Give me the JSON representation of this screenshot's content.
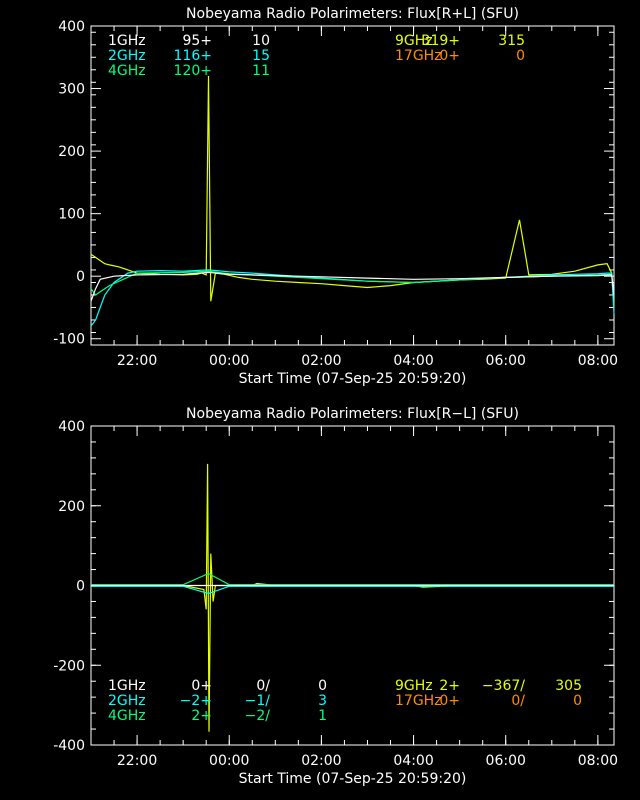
{
  "colors": {
    "1GHz": "#ffffff",
    "2GHz": "#00ffff",
    "4GHz": "#00ff7f",
    "9GHz": "#e6ff00",
    "17GHz": "#ff8c00",
    "background": "#000000",
    "axes": "#ffffff"
  },
  "chart_data": [
    {
      "type": "line",
      "title": "Nobeyama Radio Polarimeters: Flux[R+L] (SFU)",
      "xlabel": "Start Time (07-Sep-25 20:59:20)",
      "ylabel": "",
      "x_unit": "hours since start",
      "xlim": [
        0,
        11.35
      ],
      "ylim": [
        -110,
        400
      ],
      "x_ticks": [
        {
          "label": "22:00",
          "x": 1.0
        },
        {
          "label": "00:00",
          "x": 3.0
        },
        {
          "label": "02:00",
          "x": 5.0
        },
        {
          "label": "04:00",
          "x": 7.0
        },
        {
          "label": "06:00",
          "x": 9.0
        },
        {
          "label": "08:00",
          "x": 11.0
        }
      ],
      "y_ticks": [
        -100,
        0,
        100,
        200,
        300,
        400
      ],
      "legend": [
        [
          {
            "freq": "1GHz",
            "a": "95+",
            "b": "10"
          },
          {
            "freq": "9GHz",
            "a": "319+",
            "b": "315"
          }
        ],
        [
          {
            "freq": "2GHz",
            "a": "116+",
            "b": "15"
          },
          {
            "freq": "17GHz",
            "a": "0+",
            "b": "0"
          }
        ],
        [
          {
            "freq": "4GHz",
            "a": "120+",
            "b": "11"
          }
        ]
      ],
      "series": [
        {
          "name": "9GHz",
          "x": [
            0.0,
            0.1,
            0.2,
            0.3,
            0.4,
            0.6,
            0.8,
            1.0,
            1.5,
            2.0,
            2.3,
            2.4,
            2.5,
            2.55,
            2.6,
            2.7,
            2.9,
            3.2,
            3.5,
            4.0,
            4.5,
            5.0,
            5.5,
            6.0,
            6.5,
            7.0,
            7.5,
            8.0,
            8.5,
            9.0,
            9.3,
            9.5,
            10.0,
            10.5,
            11.0,
            11.2,
            11.3,
            11.35
          ],
          "y": [
            35,
            30,
            25,
            20,
            18,
            15,
            10,
            5,
            3,
            2,
            3,
            5,
            2,
            320,
            -40,
            5,
            3,
            -2,
            -5,
            -8,
            -10,
            -12,
            -15,
            -18,
            -15,
            -10,
            -8,
            -6,
            -5,
            -3,
            90,
            2,
            3,
            8,
            18,
            20,
            5,
            -50
          ]
        },
        {
          "name": "2GHz",
          "x": [
            0.0,
            0.1,
            0.2,
            0.3,
            0.5,
            0.8,
            1.0,
            1.5,
            2.0,
            2.55,
            3.0,
            3.5,
            4.0,
            5.0,
            6.0,
            7.0,
            8.0,
            9.0,
            9.5,
            10.0,
            10.5,
            11.0,
            11.2,
            11.3,
            11.35
          ],
          "y": [
            -80,
            -70,
            -50,
            -30,
            -10,
            5,
            8,
            9,
            8,
            10,
            7,
            5,
            2,
            -3,
            -8,
            -10,
            -6,
            -2,
            0,
            2,
            3,
            4,
            5,
            5,
            -60
          ]
        },
        {
          "name": "4GHz",
          "x": [
            0.0,
            0.1,
            0.2,
            0.4,
            0.7,
            1.0,
            2.0,
            2.55,
            3.0,
            4.0,
            5.0,
            6.0,
            7.0,
            8.0,
            9.0,
            10.0,
            11.0,
            11.3
          ],
          "y": [
            -20,
            -30,
            -25,
            -15,
            -5,
            5,
            6,
            8,
            4,
            0,
            -4,
            -8,
            -10,
            -6,
            -2,
            0,
            2,
            3
          ]
        },
        {
          "name": "1GHz",
          "x": [
            0.0,
            0.1,
            0.2,
            0.5,
            1.0,
            2.0,
            2.55,
            3.0,
            4.0,
            5.0,
            6.0,
            7.0,
            8.0,
            9.0,
            10.0,
            11.0,
            11.3,
            11.35
          ],
          "y": [
            -40,
            -20,
            -5,
            0,
            2,
            3,
            6,
            3,
            1,
            -1,
            -3,
            -5,
            -4,
            -2,
            0,
            1,
            2,
            -30
          ]
        }
      ]
    },
    {
      "type": "line",
      "title": "Nobeyama Radio Polarimeters: Flux[R−L] (SFU)",
      "xlabel": "Start Time (07-Sep-25 20:59:20)",
      "ylabel": "",
      "x_unit": "hours since start",
      "xlim": [
        0,
        11.35
      ],
      "ylim": [
        -400,
        400
      ],
      "x_ticks": [
        {
          "label": "22:00",
          "x": 1.0
        },
        {
          "label": "00:00",
          "x": 3.0
        },
        {
          "label": "02:00",
          "x": 5.0
        },
        {
          "label": "04:00",
          "x": 7.0
        },
        {
          "label": "06:00",
          "x": 9.0
        },
        {
          "label": "08:00",
          "x": 11.0
        }
      ],
      "y_ticks": [
        -400,
        -200,
        0,
        200,
        400
      ],
      "legend": [
        [
          {
            "freq": "1GHz",
            "a": "0+",
            "b": "0/",
            "c": "0"
          },
          {
            "freq": "9GHz",
            "a": "2+",
            "b": "−367/",
            "c": "305"
          }
        ],
        [
          {
            "freq": "2GHz",
            "a": "−2+",
            "b": "−1/",
            "c": "3"
          },
          {
            "freq": "17GHz",
            "a": "0+",
            "b": "0/",
            "c": "0"
          }
        ],
        [
          {
            "freq": "4GHz",
            "a": "2+",
            "b": "−2/",
            "c": "1"
          }
        ]
      ],
      "series": [
        {
          "name": "9GHz",
          "x": [
            0.0,
            1.0,
            2.0,
            2.45,
            2.5,
            2.53,
            2.56,
            2.6,
            2.65,
            2.7,
            3.0,
            3.5,
            3.6,
            4.0,
            5.0,
            6.0,
            7.0,
            7.2,
            8.0,
            9.0,
            10.0,
            11.0,
            11.35
          ],
          "y": [
            0,
            0,
            0,
            -10,
            -60,
            305,
            -367,
            80,
            -40,
            0,
            0,
            0,
            5,
            0,
            0,
            0,
            0,
            -4,
            0,
            0,
            0,
            0,
            0
          ]
        },
        {
          "name": "2GHz",
          "x": [
            0.0,
            2.0,
            2.55,
            3.0,
            5.0,
            7.0,
            9.0,
            11.0,
            11.35
          ],
          "y": [
            -2,
            -2,
            -20,
            -2,
            -2,
            -2,
            -2,
            -2,
            -2
          ]
        },
        {
          "name": "4GHz",
          "x": [
            0.0,
            2.0,
            2.55,
            3.0,
            5.0,
            7.0,
            9.0,
            11.0,
            11.35
          ],
          "y": [
            2,
            2,
            30,
            2,
            2,
            2,
            2,
            2,
            2
          ]
        },
        {
          "name": "1GHz",
          "x": [
            0.0,
            11.35
          ],
          "y": [
            0,
            0
          ]
        }
      ]
    }
  ]
}
